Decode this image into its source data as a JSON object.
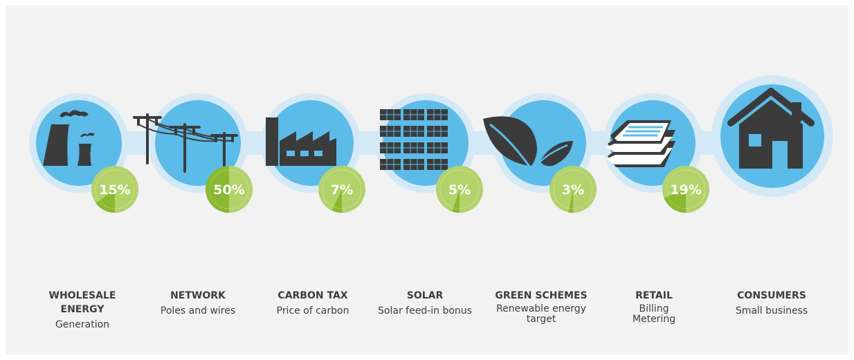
{
  "colors": {
    "circle_blue": "#5bbbe9",
    "ring_blue": "#d3e9f6",
    "connector": "#d3e9f6",
    "icon_dark": "#3b3b3b",
    "badge_light": "#b3d36a",
    "badge_dark": "#8ab92d",
    "text_dark": "#3c3c3c"
  },
  "stages": [
    {
      "id": "wholesale",
      "icon": "power-plant-icon",
      "percent": 15,
      "percent_label": "15%",
      "title": "WHOLESALE ENERGY",
      "subtitle": "Generation"
    },
    {
      "id": "network",
      "icon": "power-poles-icon",
      "percent": 50,
      "percent_label": "50%",
      "title": "NETWORK",
      "subtitle": "Poles and wires"
    },
    {
      "id": "carbon",
      "icon": "factory-icon",
      "percent": 7,
      "percent_label": "7%",
      "title": "CARBON TAX",
      "subtitle": "Price of carbon"
    },
    {
      "id": "solar",
      "icon": "solar-panels-icon",
      "percent": 5,
      "percent_label": "5%",
      "title": "SOLAR",
      "subtitle": "Solar feed-in bonus"
    },
    {
      "id": "green",
      "icon": "leaves-icon",
      "percent": 3,
      "percent_label": "3%",
      "title": "GREEN SCHEMES",
      "subtitle": "Renewable energy target"
    },
    {
      "id": "retail",
      "icon": "documents-icon",
      "percent": 19,
      "percent_label": "19%",
      "title": "RETAIL",
      "subtitle": "Billing Metering"
    },
    {
      "id": "consumers",
      "icon": "house-icon",
      "title": "CONSUMERS",
      "subtitle": "Small business"
    }
  ]
}
